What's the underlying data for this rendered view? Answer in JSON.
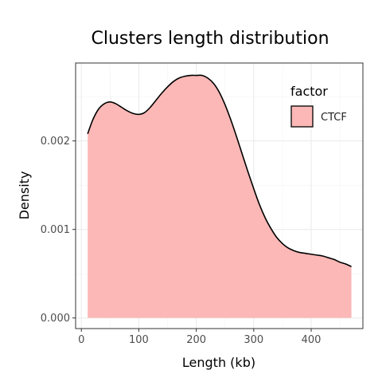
{
  "chart_data": {
    "type": "area",
    "title": "Clusters length distribution",
    "xlabel": "Length (kb)",
    "ylabel": "Density",
    "xlim": [
      -10,
      490
    ],
    "ylim": [
      -0.00012,
      0.00288
    ],
    "x_ticks": [
      0,
      100,
      200,
      300,
      400
    ],
    "y_ticks": [
      0.0,
      0.001,
      0.002
    ],
    "y_tick_labels": [
      "0.000",
      "0.001",
      "0.002"
    ],
    "grid": true,
    "legend": {
      "title": "factor",
      "position": "top-right",
      "entries": [
        "CTCF"
      ]
    },
    "series": [
      {
        "name": "CTCF",
        "fill": "#fbb8b6",
        "stroke": "#000000",
        "x": [
          11,
          20,
          30,
          40,
          50,
          60,
          70,
          80,
          90,
          100,
          110,
          120,
          130,
          140,
          150,
          160,
          170,
          180,
          190,
          200,
          210,
          220,
          230,
          240,
          250,
          260,
          270,
          280,
          290,
          300,
          310,
          320,
          330,
          340,
          350,
          360,
          370,
          380,
          390,
          400,
          410,
          420,
          430,
          440,
          450,
          460,
          470
        ],
        "y": [
          0.00208,
          0.00224,
          0.00236,
          0.00242,
          0.00244,
          0.00242,
          0.00238,
          0.00234,
          0.00231,
          0.0023,
          0.00232,
          0.00238,
          0.00246,
          0.00254,
          0.00261,
          0.00267,
          0.00271,
          0.00273,
          0.00274,
          0.00274,
          0.00274,
          0.00271,
          0.00265,
          0.00255,
          0.00241,
          0.00224,
          0.00205,
          0.00185,
          0.00165,
          0.00146,
          0.00128,
          0.00113,
          0.00101,
          0.00091,
          0.00084,
          0.00079,
          0.00076,
          0.00074,
          0.00073,
          0.00072,
          0.00071,
          0.0007,
          0.00068,
          0.00066,
          0.00063,
          0.00061,
          0.00058
        ]
      }
    ]
  }
}
